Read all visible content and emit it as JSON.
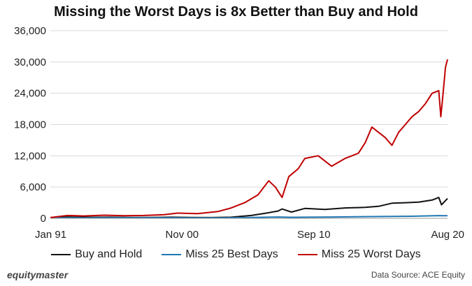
{
  "chart_data": {
    "type": "line",
    "title": "Missing the Worst Days is 8x Better than Buy and Hold",
    "ylim": [
      0,
      36000
    ],
    "y_ticks": [
      "0",
      "6,000",
      "12,000",
      "18,000",
      "24,000",
      "30,000",
      "36,000"
    ],
    "y_tick_values": [
      0,
      6000,
      12000,
      18000,
      24000,
      30000,
      36000
    ],
    "x_ticks": [
      "Jan 91",
      "Nov 00",
      "Sep 10",
      "Aug 20"
    ],
    "x_tick_values": [
      1991.0,
      2000.83,
      2010.67,
      2020.58
    ],
    "xlim": [
      1991.0,
      2020.65
    ],
    "grid": "horizontal",
    "legend_position": "bottom",
    "series": [
      {
        "name": "Buy and Hold",
        "color": "#111111",
        "x": [
          1991.0,
          1992.3,
          1993.0,
          1994.0,
          1995.5,
          1997.0,
          1998.5,
          2000.0,
          2001.5,
          2003.0,
          2004.5,
          2006.0,
          2007.0,
          2008.0,
          2008.3,
          2009.0,
          2010.0,
          2011.5,
          2013.0,
          2014.5,
          2015.5,
          2016.5,
          2017.5,
          2018.5,
          2019.5,
          2020.0,
          2020.2,
          2020.5,
          2020.65
        ],
        "y": [
          100,
          250,
          220,
          200,
          220,
          180,
          160,
          220,
          160,
          150,
          220,
          550,
          950,
          1400,
          1800,
          1200,
          1900,
          1700,
          2000,
          2100,
          2300,
          2900,
          3000,
          3100,
          3500,
          4000,
          2600,
          3400,
          3800
        ]
      },
      {
        "name": "Miss 25 Best Days",
        "color": "#1f77b4",
        "x": [
          1991.0,
          1995.0,
          2000.0,
          2004.0,
          2008.0,
          2009.0,
          2012.0,
          2015.0,
          2018.0,
          2020.0,
          2020.65
        ],
        "y": [
          80,
          100,
          90,
          80,
          260,
          200,
          250,
          330,
          400,
          520,
          500
        ]
      },
      {
        "name": "Miss 25 Worst Days",
        "color": "#c00000",
        "x": [
          1991.0,
          1992.3,
          1993.5,
          1995.0,
          1996.5,
          1998.0,
          1999.5,
          2000.5,
          2002.0,
          2003.5,
          2004.5,
          2005.5,
          2006.5,
          2007.3,
          2007.8,
          2008.3,
          2008.8,
          2009.5,
          2010.0,
          2011.0,
          2012.0,
          2013.0,
          2014.0,
          2014.5,
          2015.0,
          2016.0,
          2016.5,
          2017.0,
          2017.5,
          2018.0,
          2018.5,
          2019.0,
          2019.5,
          2020.0,
          2020.15,
          2020.3,
          2020.5,
          2020.65
        ],
        "y": [
          150,
          550,
          450,
          600,
          500,
          550,
          700,
          1000,
          900,
          1300,
          2000,
          3000,
          4500,
          7200,
          6000,
          4000,
          8000,
          9500,
          11500,
          12000,
          10000,
          11500,
          12500,
          14500,
          17500,
          15500,
          14000,
          16500,
          18000,
          19500,
          20500,
          22000,
          24000,
          24500,
          19500,
          23500,
          29000,
          30500
        ]
      }
    ]
  },
  "footer": {
    "brand": "equitymaster",
    "source": "Data Source: ACE Equity"
  }
}
